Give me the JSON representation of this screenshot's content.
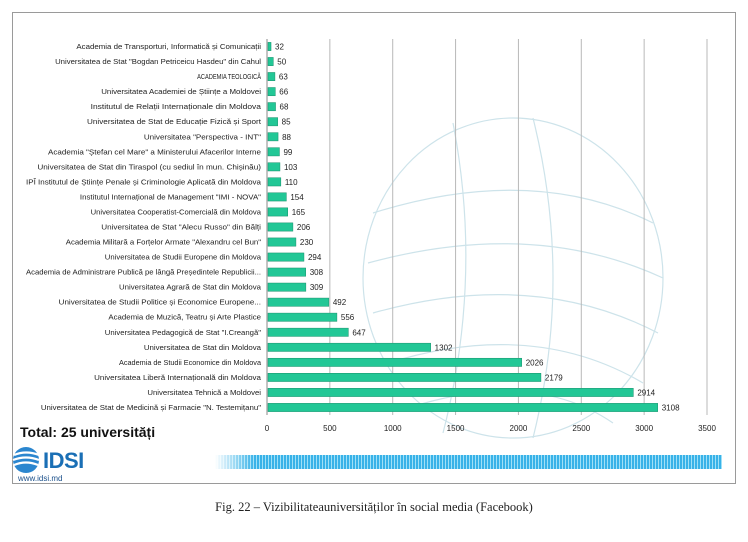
{
  "chart_data": {
    "type": "bar",
    "orientation": "horizontal",
    "categories": [
      "Academia de Transporturi, Informatică și Comunicații",
      "Universitatea de Stat \"Bogdan Petriceicu Hasdeu\" din Cahul",
      "ACADEMIA TEOLOGICĂ",
      "Universitatea Academiei de Științe a Moldovei",
      "Institutul de Relații Internaționale din Moldova",
      "Universitatea de Stat de Educație Fizică și Sport",
      "Universitatea \"Perspectiva - INT\"",
      "Academia \"Ștefan cel Mare\" a Ministerului Afacerilor Interne",
      "Universitatea de Stat din Tiraspol (cu sediul în mun. Chișinău)",
      "IPÎ Institutul de Științe Penale și Criminologie Aplicată din Moldova",
      "Institutul Internațional de Management \"IMI - NOVA\"",
      "Universitatea Cooperatist-Comercială din Moldova",
      "Universitatea de Stat \"Alecu Russo\" din Bălți",
      "Academia Militară a Forțelor Armate \"Alexandru cel Bun\"",
      "Universitatea de Studii Europene din Moldova",
      "Academia de Administrare Publică pe lângă Președintele Republicii...",
      "Universitatea Agrară de Stat din Moldova",
      "Universitatea de Studii Politice și Economice Europene...",
      "Academia de Muzică, Teatru și Arte Plastice",
      "Universitatea Pedagogică de Stat \"I.Creangă\"",
      "Universitatea de Stat din Moldova",
      "Academia de Studii Economice din Moldova",
      "Universitatea Liberă Internațională din Moldova",
      "Universitatea Tehnică a Moldovei",
      "Universitatea de Stat de Medicină și Farmacie \"N. Testemițanu\""
    ],
    "values": [
      32,
      50,
      63,
      66,
      68,
      85,
      88,
      99,
      103,
      110,
      154,
      165,
      206,
      230,
      294,
      308,
      309,
      492,
      556,
      647,
      1302,
      2026,
      2179,
      2914,
      3108
    ],
    "xlim": [
      0,
      3500
    ],
    "xticks": [
      0,
      500,
      1000,
      1500,
      2000,
      2500,
      3000,
      3500
    ],
    "grid": "vertical",
    "bar_color": "#22c796",
    "bar_edge_color": "#17906b"
  },
  "total_label": "Total: 25 universități",
  "logo": {
    "name": "IDSI",
    "url": "www.idsi.md",
    "color": "#1a6fb5"
  },
  "caption": "Fig. 22 – Vizibilitateauniversităților în social media (Facebook)"
}
